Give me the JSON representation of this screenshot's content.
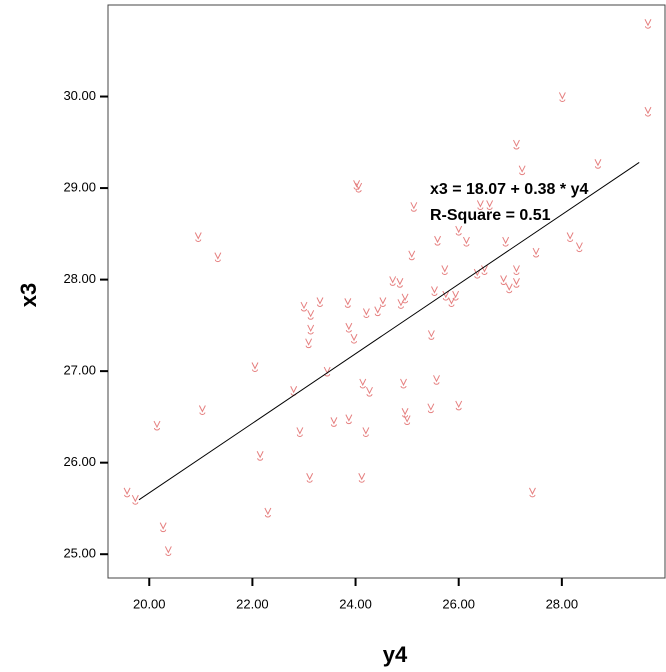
{
  "chart_data": {
    "type": "scatter",
    "x_label": "y4",
    "y_label": "x3",
    "annotations": [
      "x3 = 18.07 + 0.38 * y4",
      "R-Square = 0.51"
    ],
    "color": "#e57f7f",
    "x": [
      19.57,
      19.73,
      20.27,
      20.37,
      20.15,
      21.03,
      20.95,
      21.33,
      22.05,
      22.15,
      22.3,
      22.8,
      22.92,
      23.0,
      23.13,
      23.09,
      23.13,
      23.11,
      23.31,
      23.45,
      23.58,
      23.87,
      23.87,
      23.85,
      23.97,
      24.02,
      24.06,
      24.14,
      24.12,
      24.2,
      24.21,
      24.27,
      24.43,
      24.53,
      24.72,
      24.86,
      24.88,
      24.96,
      24.93,
      24.96,
      25.0,
      25.09,
      25.13,
      25.46,
      25.47,
      25.53,
      25.57,
      25.59,
      25.73,
      25.75,
      25.86,
      25.94,
      26.0,
      26.0,
      26.15,
      26.36,
      26.42,
      26.5,
      26.6,
      26.87,
      26.98,
      26.91,
      27.12,
      27.12,
      27.12,
      27.23,
      27.43,
      27.5,
      28.01,
      28.16,
      28.34,
      28.7,
      29.67,
      29.67
    ],
    "values": [
      25.67,
      25.59,
      25.29,
      25.03,
      26.4,
      26.57,
      28.46,
      28.24,
      27.04,
      26.07,
      25.45,
      26.78,
      26.33,
      27.7,
      27.61,
      27.3,
      27.45,
      25.83,
      27.75,
      26.99,
      26.44,
      26.47,
      27.47,
      27.74,
      27.35,
      29.03,
      29.0,
      26.86,
      25.83,
      26.33,
      27.63,
      26.77,
      27.65,
      27.75,
      27.98,
      27.96,
      27.73,
      27.79,
      26.86,
      26.54,
      26.46,
      28.26,
      28.79,
      26.59,
      27.39,
      27.87,
      26.9,
      28.42,
      28.1,
      27.82,
      27.75,
      27.82,
      26.62,
      28.53,
      28.41,
      28.06,
      28.81,
      28.1,
      28.81,
      27.99,
      27.9,
      28.41,
      27.96,
      28.1,
      29.47,
      29.19,
      25.67,
      28.29,
      29.99,
      28.46,
      28.35,
      29.26,
      29.83,
      30.79
    ],
    "fit": {
      "intercept": 18.07,
      "slope": 0.38,
      "x": [
        19.8,
        29.5
      ]
    },
    "xlim": [
      19.2,
      30.0
    ],
    "ylim": [
      24.74,
      31.0
    ],
    "xticks": [
      {
        "value": 20,
        "label": "20.00"
      },
      {
        "value": 22,
        "label": "22.00"
      },
      {
        "value": 24,
        "label": "24.00"
      },
      {
        "value": 26,
        "label": "26.00"
      },
      {
        "value": 28,
        "label": "28.00"
      }
    ],
    "yticks": [
      {
        "value": 25,
        "label": "25.00"
      },
      {
        "value": 26,
        "label": "26.00"
      },
      {
        "value": 27,
        "label": "27.00"
      },
      {
        "value": 28,
        "label": "28.00"
      },
      {
        "value": 29,
        "label": "29.00"
      },
      {
        "value": 30,
        "label": "30.00"
      }
    ]
  }
}
